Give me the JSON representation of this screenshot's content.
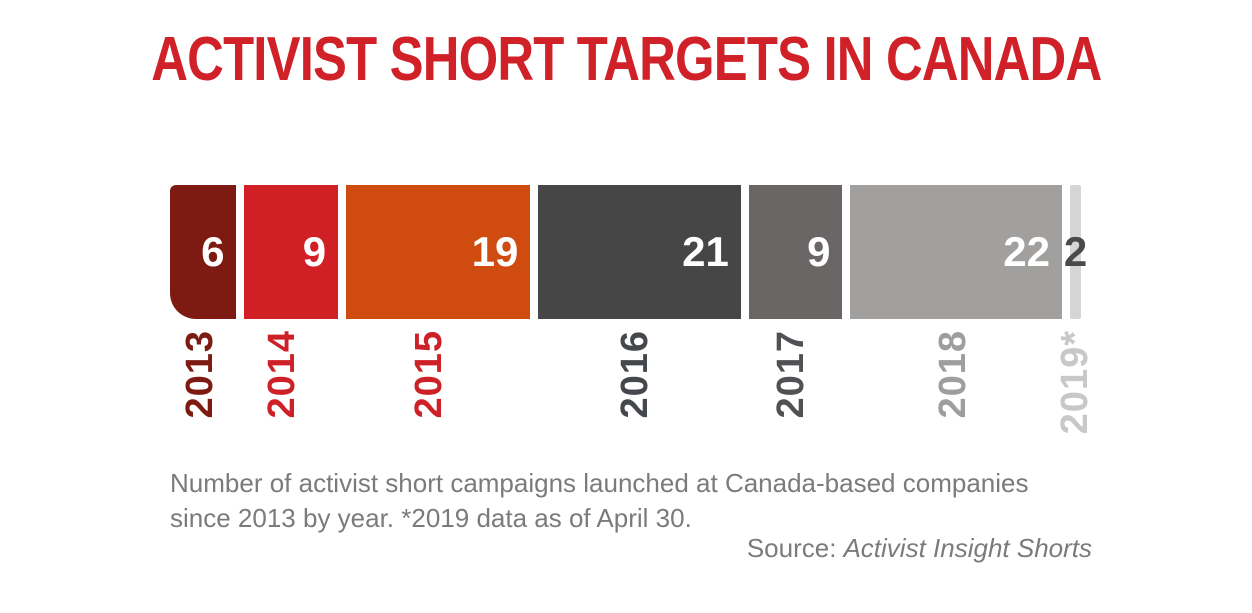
{
  "page": {
    "title": "ACTIVIST SHORT TARGETS IN CANADA"
  },
  "caption": {
    "line1": "Number of activist short campaigns launched at Canada-based companies",
    "line2": "since 2013 by year. *2019 data as of April 30."
  },
  "source": {
    "prefix": "Source:",
    "name": "Activist Insight Shorts"
  },
  "chart_data": {
    "type": "bar",
    "variant": "single-row proportional segment strip, segment width proportional to value",
    "title": "ACTIVIST SHORT TARGETS IN CANADA",
    "categories": [
      "2013",
      "2014",
      "2015",
      "2016",
      "2017",
      "2018",
      "2019*"
    ],
    "values": [
      6,
      9,
      19,
      21,
      9,
      22,
      2
    ],
    "note": "*2019 data as of April 30",
    "xlabel": "",
    "ylabel": "",
    "axes": "none",
    "grid": false,
    "legend": "none",
    "value_labels_inside_segments": true,
    "segment_colors": [
      "#7d1b12",
      "#d02026",
      "#cf4b10",
      "#464646",
      "#6a6666",
      "#a1a09e",
      "#d6d4d4"
    ],
    "value_label_colors": [
      "#ffffff",
      "#ffffff",
      "#ffffff",
      "#ffffff",
      "#ffffff",
      "#ffffff",
      "#4a4a4a"
    ],
    "year_label_colors": [
      "#7d1b12",
      "#cd2027",
      "#cd2027",
      "#44474b",
      "#515155",
      "#9f9d9d",
      "#c9c7c7"
    ]
  },
  "colors": {
    "title": "#d02028",
    "caption": "#7b7b7b",
    "background": "#ffffff"
  }
}
